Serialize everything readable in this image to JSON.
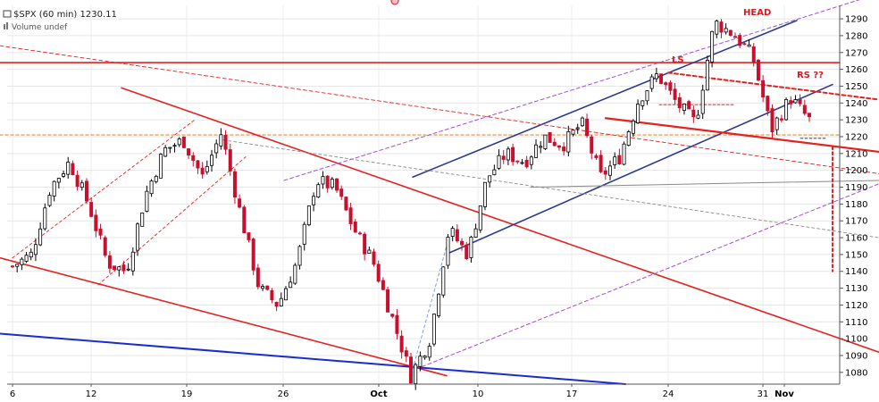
{
  "chart_data": {
    "type": "candlestick",
    "title": "$SPX (60 min) 1230.11",
    "subtitle": "Volume undef",
    "x_tick_labels": [
      "6",
      "12",
      "19",
      "26",
      "Oct",
      "10",
      "17",
      "24",
      "31",
      "Nov"
    ],
    "y_tick_labels": [
      1080,
      1090,
      1100,
      1110,
      1120,
      1130,
      1140,
      1150,
      1160,
      1170,
      1180,
      1190,
      1200,
      1210,
      1220,
      1230,
      1240,
      1250,
      1260,
      1270,
      1280,
      1290
    ],
    "ylim": [
      1073,
      1298
    ],
    "grid": true,
    "last_value": 1230.11,
    "annotations": [
      {
        "text": "HEAD",
        "price": 1290
      },
      {
        "text": "LS",
        "price": 1262
      },
      {
        "text": "RS ??",
        "price": 1253
      }
    ],
    "price_path": [
      [
        0,
        1143
      ],
      [
        1,
        1150
      ],
      [
        2,
        1190
      ],
      [
        3,
        1205
      ],
      [
        4,
        1180
      ],
      [
        5,
        1145
      ],
      [
        6,
        1140
      ],
      [
        7,
        1185
      ],
      [
        8,
        1212
      ],
      [
        9,
        1218
      ],
      [
        10,
        1196
      ],
      [
        11,
        1222
      ],
      [
        12,
        1175
      ],
      [
        13,
        1130
      ],
      [
        14,
        1120
      ],
      [
        15,
        1146
      ],
      [
        16,
        1194
      ],
      [
        17,
        1190
      ],
      [
        18,
        1165
      ],
      [
        19,
        1146
      ],
      [
        20,
        1113
      ],
      [
        21,
        1078
      ],
      [
        22,
        1100
      ],
      [
        23,
        1165
      ],
      [
        24,
        1150
      ],
      [
        25,
        1195
      ],
      [
        26,
        1210
      ],
      [
        27,
        1205
      ],
      [
        28,
        1220
      ],
      [
        29,
        1215
      ],
      [
        30,
        1228
      ],
      [
        31,
        1196
      ],
      [
        32,
        1208
      ],
      [
        33,
        1242
      ],
      [
        34,
        1257
      ],
      [
        35,
        1240
      ],
      [
        36,
        1228
      ],
      [
        37,
        1288
      ],
      [
        38,
        1281
      ],
      [
        39,
        1268
      ],
      [
        40,
        1224
      ],
      [
        41,
        1243
      ],
      [
        42,
        1230
      ]
    ],
    "num_candles": 173,
    "colors": {
      "up": "#000000",
      "down": "#c8102e",
      "trend_red": "#e32222",
      "channel_blue": "#2e3a8c",
      "support_blue": "#1a2bd0",
      "dashed_purple": "#a34fd1",
      "dashed_orange": "#f0a050",
      "gray": "#8a8a8a"
    }
  }
}
